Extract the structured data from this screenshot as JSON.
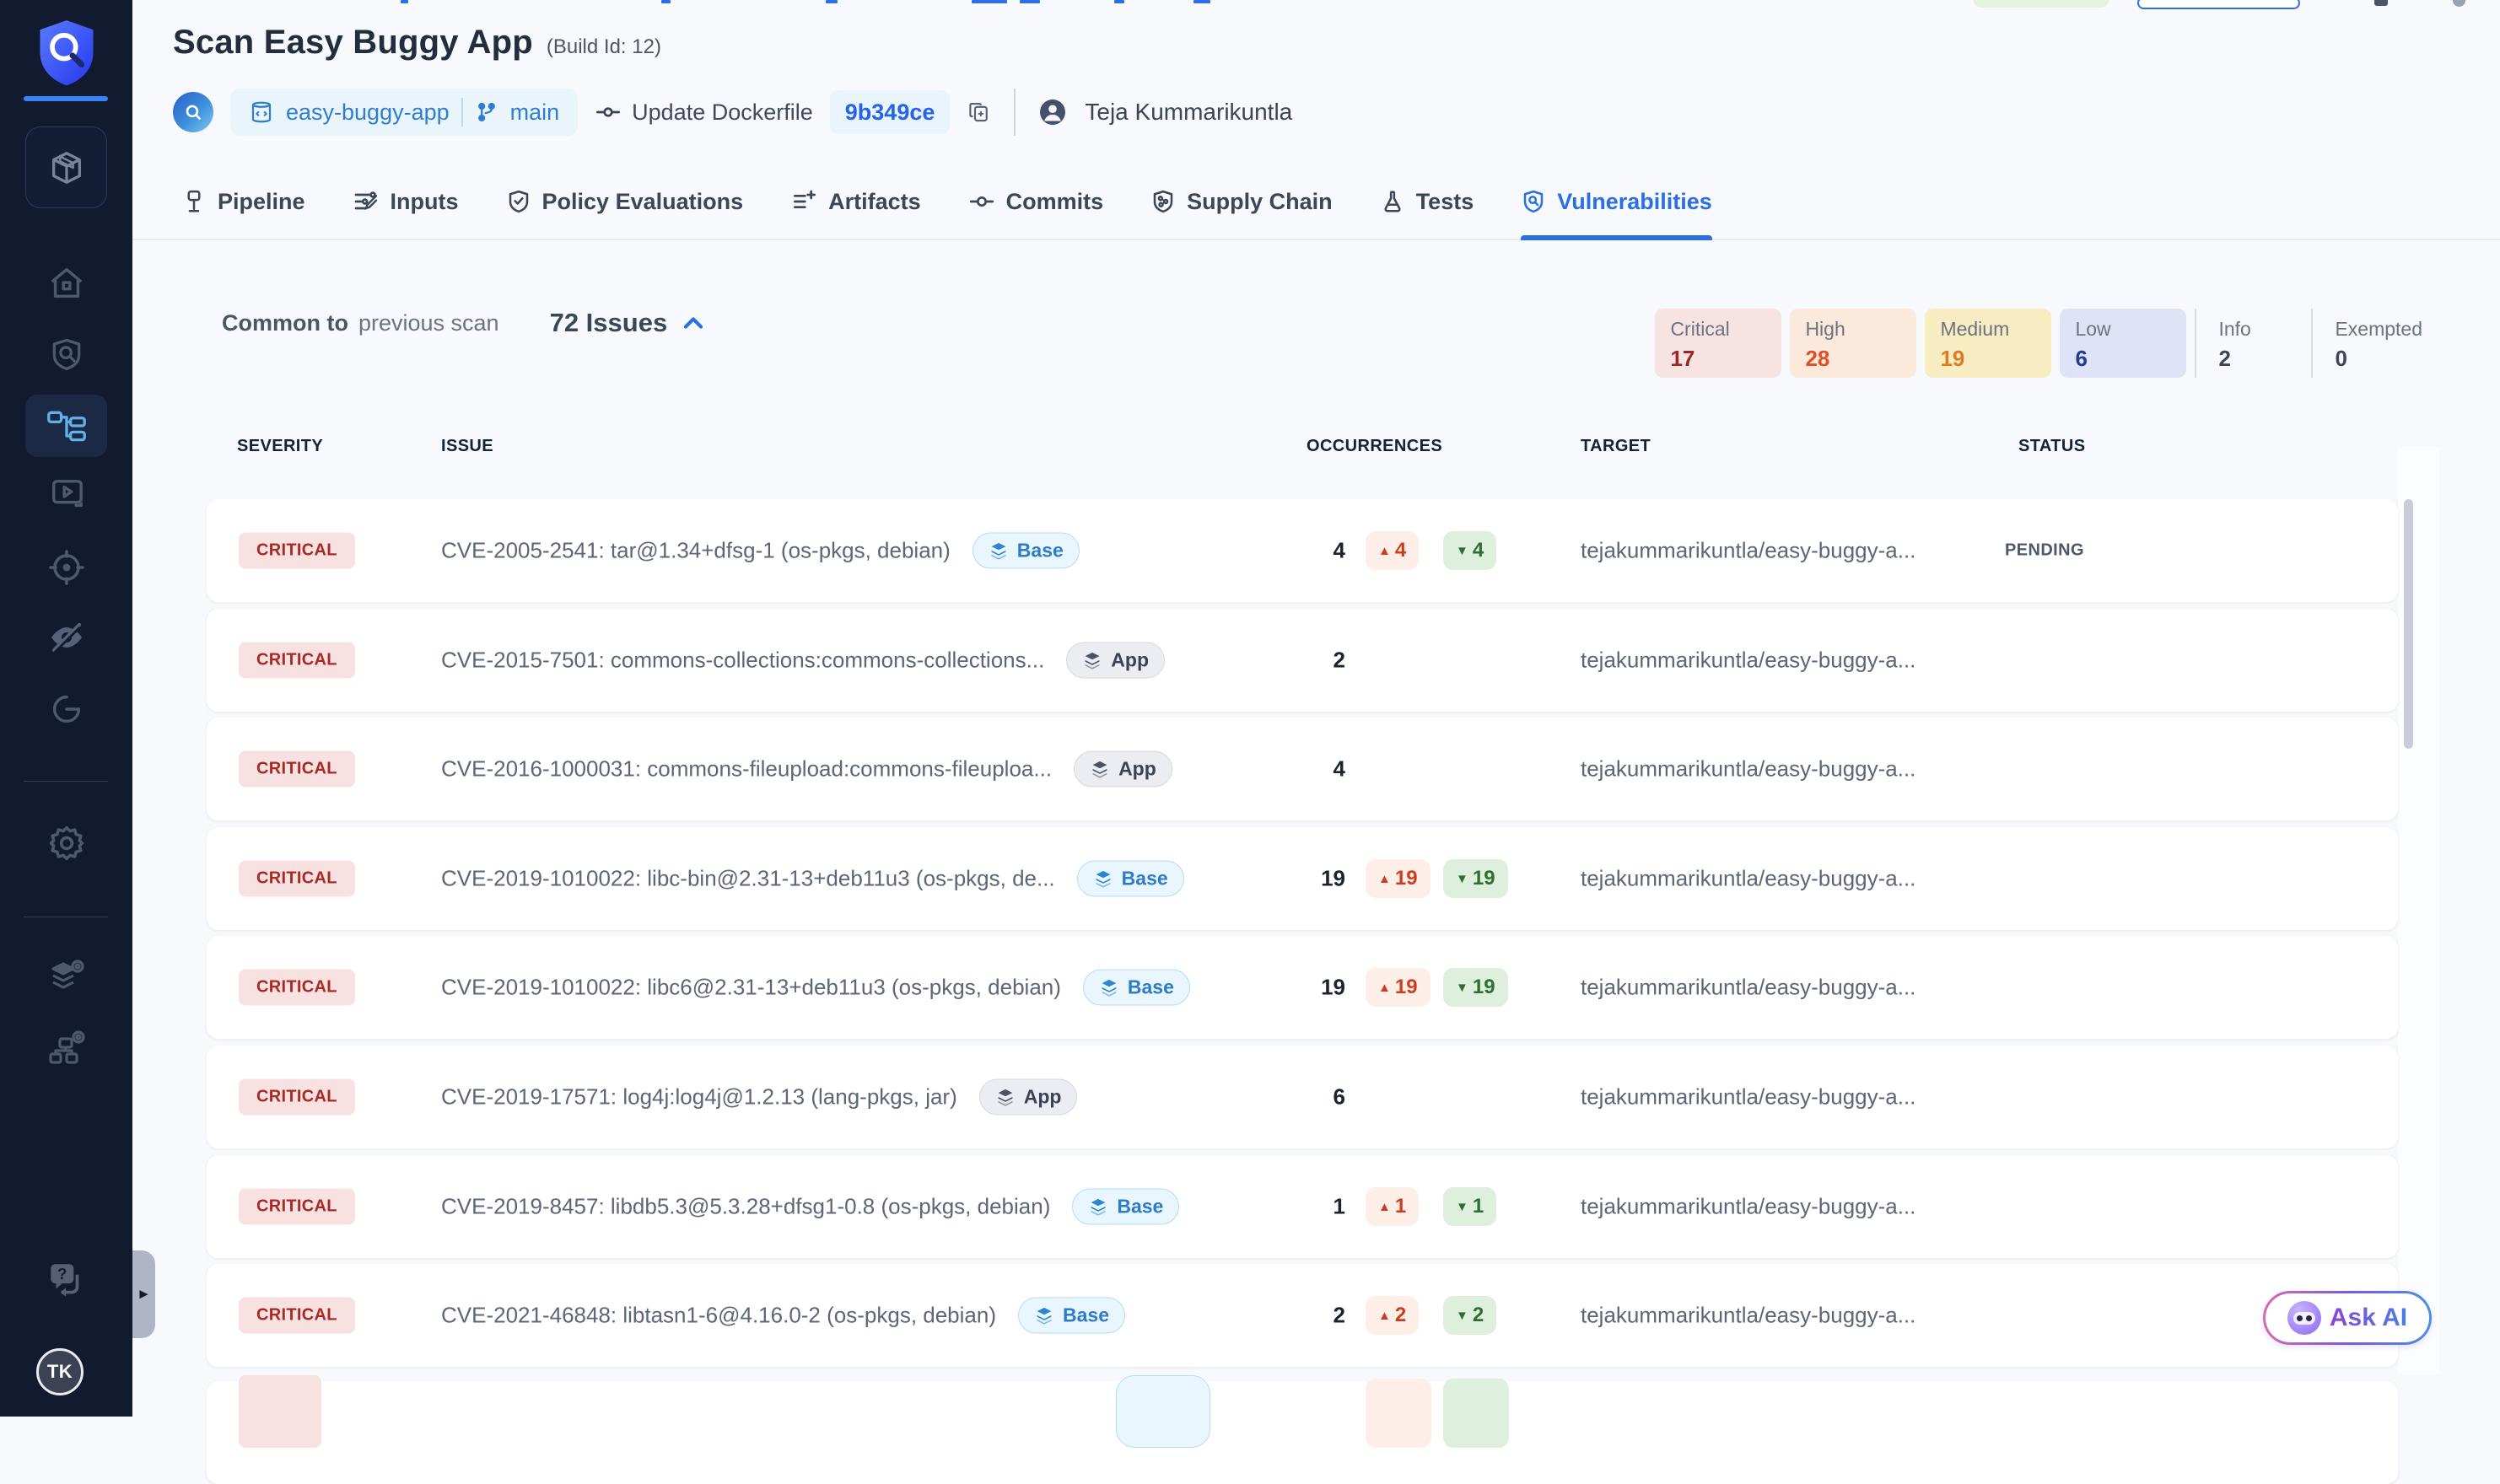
{
  "header": {
    "title": "Scan Easy Buggy App",
    "build_id": "(Build Id: 12)",
    "repo": "easy-buggy-app",
    "branch": "main",
    "commit_message": "Update Dockerfile",
    "commit_sha": "9b349ce",
    "author": "Teja Kummarikuntla"
  },
  "tabs": [
    {
      "label": "Pipeline",
      "active": false
    },
    {
      "label": "Inputs",
      "active": false
    },
    {
      "label": "Policy Evaluations",
      "active": false
    },
    {
      "label": "Artifacts",
      "active": false
    },
    {
      "label": "Commits",
      "active": false
    },
    {
      "label": "Supply Chain",
      "active": false
    },
    {
      "label": "Tests",
      "active": false
    },
    {
      "label": "Vulnerabilities",
      "active": true
    }
  ],
  "filter": {
    "common_to": "Common to",
    "scope": "previous scan",
    "issues": "72 Issues"
  },
  "severity_summary": [
    {
      "label": "Critical",
      "count": "17",
      "bg": "#f6e3e2",
      "count_color": "#9b2727",
      "boxed": true
    },
    {
      "label": "High",
      "count": "28",
      "bg": "#fbeadb",
      "count_color": "#e04f26",
      "boxed": true
    },
    {
      "label": "Medium",
      "count": "19",
      "bg": "#f8ecc3",
      "count_color": "#de7c22",
      "boxed": true
    },
    {
      "label": "Low",
      "count": "6",
      "bg": "#dfe3f8",
      "count_color": "#233a8f",
      "boxed": true
    },
    {
      "label": "Info",
      "count": "2",
      "bg": "",
      "count_color": "#3d4657",
      "boxed": false
    },
    {
      "label": "Exempted",
      "count": "0",
      "bg": "",
      "count_color": "#3d4657",
      "boxed": false
    }
  ],
  "table": {
    "columns": [
      "SEVERITY",
      "ISSUE",
      "OCCURRENCES",
      "TARGET",
      "STATUS"
    ],
    "rows": [
      {
        "severity": "CRITICAL",
        "issue": "CVE-2005-2541: tar@1.34+dfsg-1 (os-pkgs, debian)",
        "scope": "Base",
        "occurrences": "4",
        "new": "4",
        "fixed": "4",
        "target": "tejakummarikuntla/easy-buggy-a...",
        "status": "PENDING"
      },
      {
        "severity": "CRITICAL",
        "issue": "CVE-2015-7501: commons-collections:commons-collections...",
        "scope": "App",
        "occurrences": "2",
        "target": "tejakummarikuntla/easy-buggy-a...",
        "status": ""
      },
      {
        "severity": "CRITICAL",
        "issue": "CVE-2016-1000031: commons-fileupload:commons-fileuploa...",
        "scope": "App",
        "occurrences": "4",
        "target": "tejakummarikuntla/easy-buggy-a...",
        "status": ""
      },
      {
        "severity": "CRITICAL",
        "issue": "CVE-2019-1010022: libc-bin@2.31-13+deb11u3 (os-pkgs, de...",
        "scope": "Base",
        "occurrences": "19",
        "new": "19",
        "fixed": "19",
        "target": "tejakummarikuntla/easy-buggy-a...",
        "status": ""
      },
      {
        "severity": "CRITICAL",
        "issue": "CVE-2019-1010022: libc6@2.31-13+deb11u3 (os-pkgs, debian)",
        "scope": "Base",
        "occurrences": "19",
        "new": "19",
        "fixed": "19",
        "target": "tejakummarikuntla/easy-buggy-a...",
        "status": ""
      },
      {
        "severity": "CRITICAL",
        "issue": "CVE-2019-17571: log4j:log4j@1.2.13 (lang-pkgs, jar)",
        "scope": "App",
        "occurrences": "6",
        "target": "tejakummarikuntla/easy-buggy-a...",
        "status": ""
      },
      {
        "severity": "CRITICAL",
        "issue": "CVE-2019-8457: libdb5.3@5.3.28+dfsg1-0.8 (os-pkgs, debian)",
        "scope": "Base",
        "occurrences": "1",
        "new": "1",
        "fixed": "1",
        "target": "tejakummarikuntla/easy-buggy-a...",
        "status": ""
      },
      {
        "severity": "CRITICAL",
        "issue": "CVE-2021-46848: libtasn1-6@4.16.0-2 (os-pkgs, debian)",
        "scope": "Base",
        "occurrences": "2",
        "new": "2",
        "fixed": "2",
        "target": "tejakummarikuntla/easy-buggy-a...",
        "status": ""
      }
    ]
  },
  "ask_ai": {
    "label": "Ask AI"
  },
  "user": {
    "initials": "TK"
  },
  "icons": {
    "up_triangle": "▲",
    "down_triangle": "▼",
    "expander_arrow": "►",
    "question_mark": "?"
  },
  "colors": {
    "accent_blue": "#2b6fe4",
    "sidebar_bg": "#111a2e",
    "critical_badge_bg": "#f7e2e1",
    "critical_badge_text": "#a92a24",
    "new_delta": "#cd3e1f",
    "fixed_delta": "#2c7031",
    "base_badge_text": "#2e7cc9"
  }
}
